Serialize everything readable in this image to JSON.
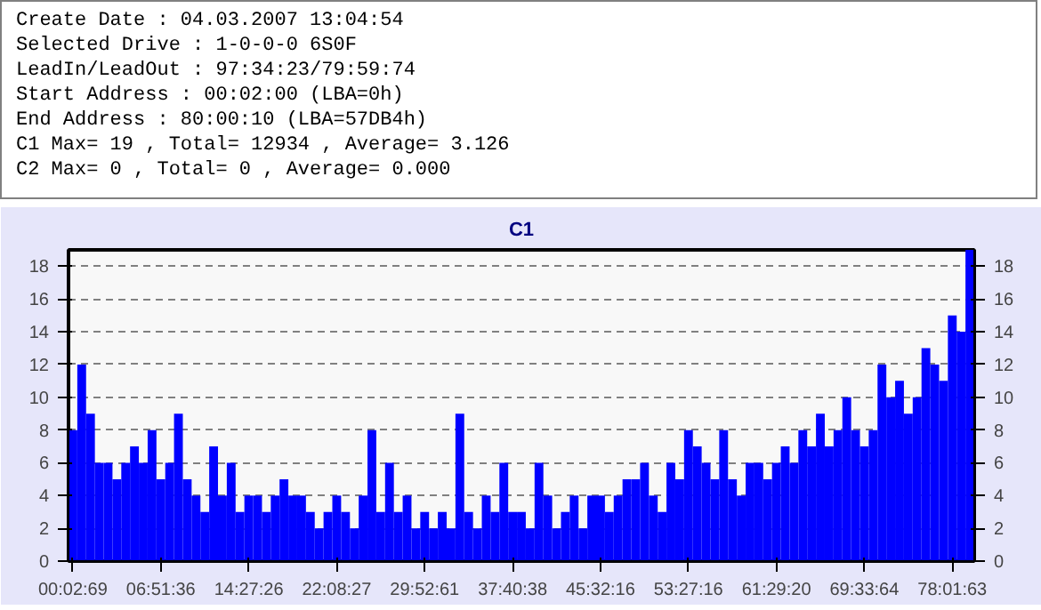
{
  "chart_data": {
    "type": "bar",
    "title": "C1",
    "annotations": [
      "Create Date : 04.03.2007 13:04:54",
      "Selected Drive : 1-0-0-0 6S0F",
      "LeadIn/LeadOut : 97:34:23/79:59:74",
      "Start Address : 00:02:00 (LBA=0h)",
      "End Address : 80:00:10 (LBA=57DB4h)",
      "C1 Max= 19 , Total= 12934 , Average= 3.126",
      "C2 Max= 0 , Total= 0 , Average= 0.000"
    ],
    "categories": [
      "00:02:69",
      null,
      null,
      null,
      null,
      null,
      null,
      null,
      null,
      null,
      "06:51:36",
      null,
      null,
      null,
      null,
      null,
      null,
      null,
      null,
      null,
      "14:27:26",
      null,
      null,
      null,
      null,
      null,
      null,
      null,
      null,
      null,
      "22:08:27",
      null,
      null,
      null,
      null,
      null,
      null,
      null,
      null,
      null,
      "29:52:61",
      null,
      null,
      null,
      null,
      null,
      null,
      null,
      null,
      null,
      "37:40:38",
      null,
      null,
      null,
      null,
      null,
      null,
      null,
      null,
      null,
      "45:32:16",
      null,
      null,
      null,
      null,
      null,
      null,
      null,
      null,
      null,
      "53:27:16",
      null,
      null,
      null,
      null,
      null,
      null,
      null,
      null,
      null,
      "61:29:20",
      null,
      null,
      null,
      null,
      null,
      null,
      null,
      null,
      null,
      "69:33:64",
      null,
      null,
      null,
      null,
      null,
      null,
      null,
      null,
      null,
      "78:01:63",
      null,
      null
    ],
    "values": [
      8,
      12,
      9,
      6,
      6,
      5,
      6,
      7,
      6,
      8,
      5,
      6,
      9,
      5,
      4,
      3,
      7,
      4,
      6,
      3,
      4,
      4,
      3,
      4,
      5,
      4,
      4,
      3,
      2,
      3,
      4,
      3,
      2,
      4,
      8,
      3,
      6,
      3,
      4,
      2,
      3,
      2,
      3,
      2,
      9,
      3,
      2,
      4,
      3,
      6,
      3,
      3,
      2,
      6,
      4,
      2,
      3,
      4,
      2,
      4,
      4,
      3,
      4,
      5,
      5,
      6,
      4,
      3,
      6,
      5,
      8,
      7,
      6,
      5,
      8,
      5,
      4,
      6,
      6,
      5,
      6,
      7,
      6,
      8,
      7,
      9,
      7,
      8,
      10,
      8,
      7,
      8,
      12,
      10,
      11,
      9,
      10,
      13,
      12,
      11,
      15,
      14,
      19
    ],
    "color": "#0000ff",
    "ylim": [
      0,
      19
    ],
    "yticks": [
      0,
      2,
      4,
      6,
      8,
      10,
      12,
      14,
      16,
      18
    ],
    "y2lim": [
      0,
      19
    ],
    "y2ticks": [
      0,
      2,
      4,
      6,
      8,
      10,
      12,
      14,
      16,
      18
    ],
    "grid": "y"
  }
}
